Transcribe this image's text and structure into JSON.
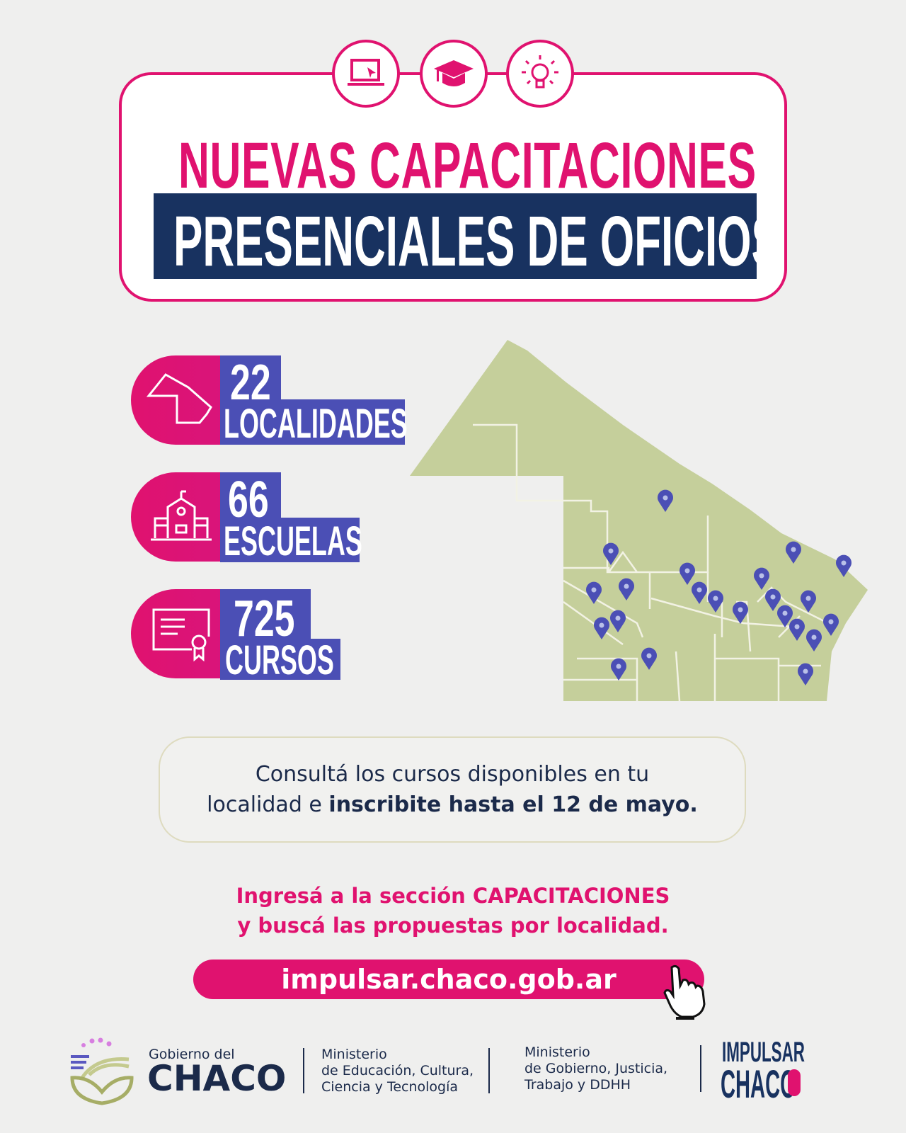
{
  "header": {
    "title_line1": "NUEVAS CAPACITACIONES",
    "title_line2": "PRESENCIALES DE OFICIOS",
    "icons": [
      "laptop-cursor-icon",
      "graduation-cap-icon",
      "lightbulb-icon"
    ]
  },
  "stats": [
    {
      "number": "22",
      "label": "LOCALIDADES",
      "icon": "province-map-icon"
    },
    {
      "number": "66",
      "label": "ESCUELAS",
      "icon": "school-icon"
    },
    {
      "number": "725",
      "label": "CURSOS",
      "icon": "certificate-icon"
    }
  ],
  "info": {
    "line1": "Consultá los cursos disponibles en tu",
    "line2_normal": "localidad e ",
    "line2_bold": "inscribite hasta el 12 de mayo."
  },
  "cta": {
    "line1": "Ingresá a la sección CAPACITACIONES",
    "line2": "y buscá las propuestas por localidad."
  },
  "url": "impulsar.chaco.gob.ar",
  "footer": {
    "gov_small": "Gobierno del",
    "gov_big": "CHACO",
    "ministry1": [
      "Ministerio",
      "de Educación, Cultura,",
      "Ciencia y Tecnología"
    ],
    "ministry2": [
      "Ministerio",
      "de Gobierno, Justicia,",
      "Trabajo y DDHH"
    ],
    "brand_line1": "IMPULSAR",
    "brand_line2": "CHACO"
  },
  "colors": {
    "pink": "#e0126f",
    "navy": "#183260",
    "violet": "#4b4fb5",
    "map": "#c5cf9b"
  }
}
